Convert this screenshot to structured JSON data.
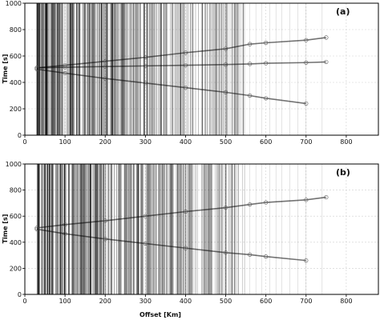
{
  "chart_data": [
    {
      "type": "scatter",
      "panel_label": "(a)",
      "title": "",
      "xlabel": "",
      "ylabel": "Time [s]",
      "xlim": [
        0,
        880
      ],
      "ylim": [
        0,
        1000
      ],
      "x_ticks": [
        0,
        100,
        200,
        300,
        400,
        500,
        600,
        700,
        800
      ],
      "y_ticks": [
        0,
        200,
        400,
        600,
        800,
        1000
      ],
      "grid": true,
      "trace_density": "dense from ~30 to ~550 km, sparse beyond 550 km",
      "series": [
        {
          "x": [
            30,
            100,
            200,
            300,
            400,
            500,
            560,
            600,
            700,
            750
          ],
          "y": [
            510,
            530,
            560,
            590,
            625,
            655,
            690,
            700,
            720,
            740
          ]
        },
        {
          "x": [
            30,
            100,
            200,
            300,
            400,
            500,
            560,
            600,
            700,
            750
          ],
          "y": [
            510,
            515,
            520,
            525,
            530,
            535,
            540,
            545,
            550,
            555
          ]
        },
        {
          "x": [
            30,
            100,
            200,
            300,
            400,
            500,
            560,
            600,
            700
          ],
          "y": [
            500,
            470,
            430,
            395,
            360,
            325,
            300,
            280,
            240
          ]
        }
      ]
    },
    {
      "type": "scatter",
      "panel_label": "(b)",
      "title": "",
      "xlabel": "Offset [Km]",
      "ylabel": "Time [s]",
      "xlim": [
        0,
        880
      ],
      "ylim": [
        0,
        1000
      ],
      "x_ticks": [
        0,
        100,
        200,
        300,
        400,
        500,
        600,
        700,
        800
      ],
      "y_ticks": [
        0,
        200,
        400,
        600,
        800,
        1000
      ],
      "grid": true,
      "trace_density": "dense from ~30 to ~550 km, sparse beyond 550 km",
      "series": [
        {
          "x": [
            30,
            100,
            200,
            300,
            400,
            500,
            560,
            600,
            700,
            750
          ],
          "y": [
            510,
            535,
            565,
            600,
            635,
            665,
            690,
            705,
            725,
            745
          ]
        },
        {
          "x": [
            30,
            100,
            200,
            300,
            400,
            500,
            560,
            600,
            700
          ],
          "y": [
            500,
            465,
            425,
            390,
            355,
            320,
            305,
            290,
            260
          ]
        }
      ]
    }
  ]
}
